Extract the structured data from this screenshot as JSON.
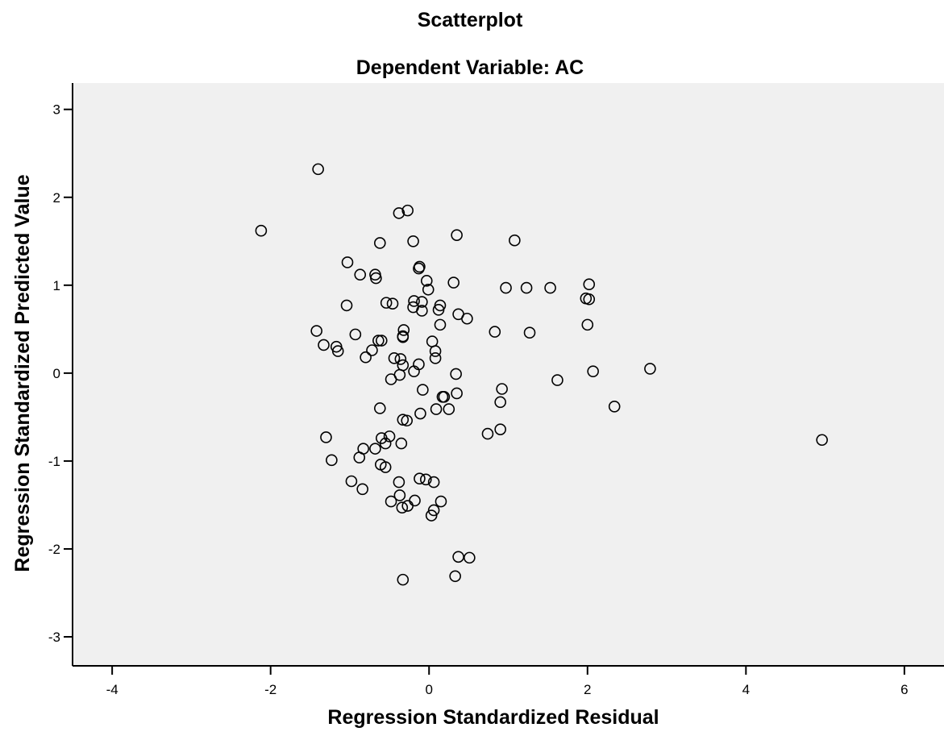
{
  "chart_data": {
    "type": "scatter",
    "title": "Scatterplot",
    "subtitle": "Dependent Variable: AC",
    "xlabel": "Regression Standardized Residual",
    "ylabel": "Regression Standardized Predicted Value",
    "xlim": [
      -4.5,
      6.5
    ],
    "ylim": [
      -3.33,
      3.3
    ],
    "xticks": [
      -4,
      -2,
      0,
      2,
      4,
      6
    ],
    "yticks": [
      -3,
      -2,
      -1,
      0,
      1,
      2,
      3
    ],
    "xtick_labels": [
      "-4",
      "-2",
      "0",
      "2",
      "4",
      "6"
    ],
    "ytick_labels": [
      "-3",
      "-2",
      "-1",
      "0",
      "1",
      "2",
      "3"
    ],
    "grid": false,
    "background_color": "#f0f0f0",
    "marker": "open-circle",
    "marker_color": "#000000",
    "points": [
      [
        -1.4,
        2.32
      ],
      [
        -2.12,
        1.62
      ],
      [
        -0.38,
        1.82
      ],
      [
        -0.27,
        1.85
      ],
      [
        -0.62,
        1.48
      ],
      [
        -0.2,
        1.5
      ],
      [
        0.35,
        1.57
      ],
      [
        1.08,
        1.51
      ],
      [
        -1.03,
        1.26
      ],
      [
        -0.12,
        1.21
      ],
      [
        -0.13,
        1.19
      ],
      [
        -0.87,
        1.12
      ],
      [
        -0.68,
        1.12
      ],
      [
        -0.67,
        1.08
      ],
      [
        -0.03,
        1.05
      ],
      [
        0.31,
        1.03
      ],
      [
        -0.01,
        0.95
      ],
      [
        0.97,
        0.97
      ],
      [
        1.23,
        0.97
      ],
      [
        1.53,
        0.97
      ],
      [
        2.02,
        1.01
      ],
      [
        1.98,
        0.85
      ],
      [
        2.02,
        0.84
      ],
      [
        -1.04,
        0.77
      ],
      [
        -0.54,
        0.8
      ],
      [
        -0.46,
        0.79
      ],
      [
        -0.19,
        0.82
      ],
      [
        -0.2,
        0.75
      ],
      [
        -0.09,
        0.81
      ],
      [
        -0.09,
        0.71
      ],
      [
        0.14,
        0.77
      ],
      [
        0.12,
        0.72
      ],
      [
        0.37,
        0.67
      ],
      [
        0.48,
        0.62
      ],
      [
        2.0,
        0.55
      ],
      [
        0.14,
        0.55
      ],
      [
        -1.42,
        0.48
      ],
      [
        -0.32,
        0.49
      ],
      [
        -0.33,
        0.42
      ],
      [
        -0.33,
        0.41
      ],
      [
        0.83,
        0.47
      ],
      [
        1.27,
        0.46
      ],
      [
        -0.93,
        0.44
      ],
      [
        -0.64,
        0.37
      ],
      [
        -0.6,
        0.37
      ],
      [
        0.04,
        0.36
      ],
      [
        -1.33,
        0.32
      ],
      [
        -1.17,
        0.3
      ],
      [
        -1.15,
        0.25
      ],
      [
        -0.72,
        0.26
      ],
      [
        0.08,
        0.25
      ],
      [
        -0.8,
        0.18
      ],
      [
        -0.44,
        0.17
      ],
      [
        -0.36,
        0.16
      ],
      [
        0.08,
        0.17
      ],
      [
        -0.33,
        0.09
      ],
      [
        -0.13,
        0.1
      ],
      [
        -0.19,
        0.02
      ],
      [
        -0.37,
        -0.02
      ],
      [
        -0.48,
        -0.07
      ],
      [
        0.34,
        -0.01
      ],
      [
        2.07,
        0.02
      ],
      [
        2.79,
        0.05
      ],
      [
        1.62,
        -0.08
      ],
      [
        -0.08,
        -0.19
      ],
      [
        0.35,
        -0.23
      ],
      [
        0.19,
        -0.27
      ],
      [
        0.17,
        -0.27
      ],
      [
        0.92,
        -0.18
      ],
      [
        0.9,
        -0.33
      ],
      [
        2.34,
        -0.38
      ],
      [
        -0.62,
        -0.4
      ],
      [
        0.09,
        -0.41
      ],
      [
        0.25,
        -0.41
      ],
      [
        -0.11,
        -0.46
      ],
      [
        -0.33,
        -0.53
      ],
      [
        -0.28,
        -0.54
      ],
      [
        0.9,
        -0.64
      ],
      [
        0.74,
        -0.69
      ],
      [
        -1.3,
        -0.73
      ],
      [
        -0.6,
        -0.74
      ],
      [
        -0.5,
        -0.72
      ],
      [
        -0.35,
        -0.8
      ],
      [
        -0.55,
        -0.8
      ],
      [
        -0.83,
        -0.86
      ],
      [
        -0.68,
        -0.86
      ],
      [
        -0.88,
        -0.96
      ],
      [
        -1.23,
        -0.99
      ],
      [
        -0.61,
        -1.04
      ],
      [
        -0.55,
        -1.07
      ],
      [
        -0.98,
        -1.23
      ],
      [
        -0.38,
        -1.24
      ],
      [
        -0.12,
        -1.2
      ],
      [
        -0.04,
        -1.21
      ],
      [
        0.06,
        -1.24
      ],
      [
        -0.84,
        -1.32
      ],
      [
        -0.37,
        -1.39
      ],
      [
        -0.48,
        -1.46
      ],
      [
        -0.18,
        -1.45
      ],
      [
        0.15,
        -1.46
      ],
      [
        -0.27,
        -1.51
      ],
      [
        -0.34,
        -1.53
      ],
      [
        0.06,
        -1.56
      ],
      [
        0.03,
        -1.62
      ],
      [
        0.37,
        -2.09
      ],
      [
        0.51,
        -2.1
      ],
      [
        0.33,
        -2.31
      ],
      [
        -0.33,
        -2.35
      ],
      [
        4.96,
        -0.76
      ]
    ]
  }
}
